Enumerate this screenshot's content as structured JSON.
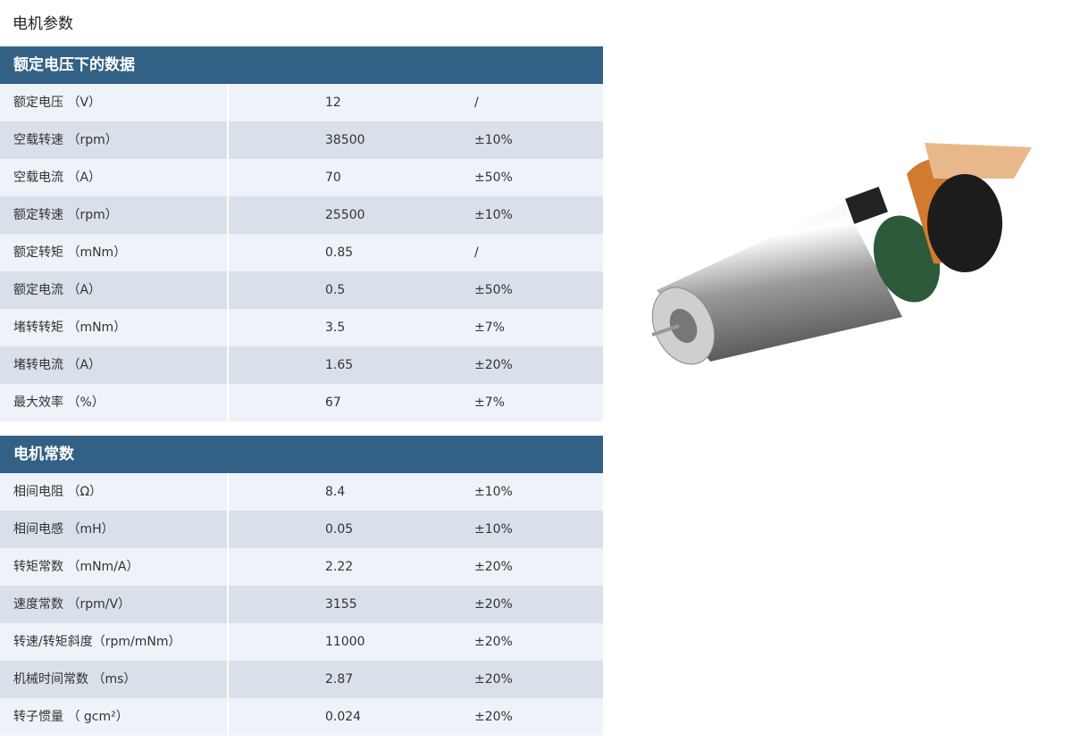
{
  "page_title": "电机参数",
  "sections": [
    {
      "title": "额定电压下的数据",
      "rows": [
        {
          "name": "额定电压 （V）",
          "value": "12",
          "tolerance": "/"
        },
        {
          "name": "空载转速 （rpm）",
          "value": "38500",
          "tolerance": "±10%"
        },
        {
          "name": "空载电流 （A）",
          "value": "70",
          "tolerance": "±50%"
        },
        {
          "name": "额定转速 （rpm）",
          "value": "25500",
          "tolerance": "±10%"
        },
        {
          "name": "额定转矩 （mNm）",
          "value": "0.85",
          "tolerance": "/"
        },
        {
          "name": "额定电流 （A）",
          "value": "0.5",
          "tolerance": "±50%"
        },
        {
          "name": "堵转转矩 （mNm）",
          "value": "3.5",
          "tolerance": "±7%"
        },
        {
          "name": "堵转电流 （A）",
          "value": "1.65",
          "tolerance": "±20%"
        },
        {
          "name": "最大效率 （%）",
          "value": "67",
          "tolerance": "±7%"
        }
      ]
    },
    {
      "title": "电机常数",
      "rows": [
        {
          "name": "相间电阻 （Ω）",
          "value": "8.4",
          "tolerance": "±10%"
        },
        {
          "name": "相间电感 （mH）",
          "value": "0.05",
          "tolerance": "±10%"
        },
        {
          "name": "转矩常数 （mNm/A）",
          "value": "2.22",
          "tolerance": "±20%"
        },
        {
          "name": "速度常数 （rpm/V）",
          "value": "3155",
          "tolerance": "±20%"
        },
        {
          "name": "转速/转矩斜度（rpm/mNm）",
          "value": "11000",
          "tolerance": "±20%"
        },
        {
          "name": "机械时间常数 （ms）",
          "value": "2.87",
          "tolerance": "±20%"
        },
        {
          "name": "转子惯量 （ gcm²）",
          "value": "0.024",
          "tolerance": "±20%"
        }
      ]
    }
  ],
  "colors": {
    "header": "#336185",
    "row_light": "#eef2f9",
    "row_dark": "#d9e0ea"
  }
}
